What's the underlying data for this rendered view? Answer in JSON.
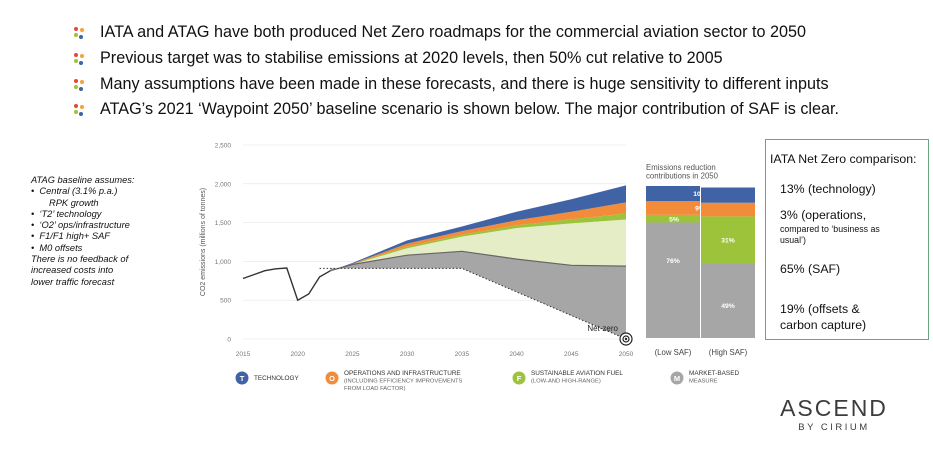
{
  "bullets": [
    "IATA and ATAG have both produced Net Zero roadmaps for the commercial aviation sector to 2050",
    "Previous target was to stabilise emissions at 2020 levels, then 50% cut relative to 2005",
    "Many assumptions have been made in these forecasts, and there is huge sensitivity to different inputs",
    "ATAG’s 2021 ‘Waypoint 2050’ baseline scenario is shown below. The major contribution of SAF is clear."
  ],
  "assumptions": {
    "heading": "ATAG baseline assumes:",
    "items": [
      "Central (3.1% p.a.)",
      "RPK growth",
      "‘T2’ technology",
      "‘O2’ ops/infrastructure",
      "F1/F1 high+ SAF",
      "M0 offsets"
    ],
    "footer": [
      "There is no feedback of",
      "increased costs into",
      "lower traffic forecast"
    ]
  },
  "iata_box": {
    "title": "IATA Net Zero comparison:",
    "technology": "13% (technology)",
    "operations": "3% (operations,",
    "operations_note_1": "compared to ‘business as",
    "operations_note_2": "usual’)",
    "saf": "65% (SAF)",
    "offsets_1": "19% (offsets &",
    "offsets_2": "carbon capture)"
  },
  "logo": {
    "main": "ASCEND",
    "sub": "BY CIRIUM"
  },
  "colors": {
    "technology": "#3f63a4",
    "operations": "#f28c3a",
    "saf": "#9cc33a",
    "saf_light": "#e4edc6",
    "market": "#a6a6a6",
    "historical": "#333333"
  },
  "chart_data": [
    {
      "type": "area",
      "ylabel": "CO2 emissions (millions of tonnes)",
      "ylim": [
        0,
        2500
      ],
      "yticks": [
        "0",
        "500",
        "1,000",
        "1,500",
        "2,000",
        "2,500"
      ],
      "xticks": [
        "2015",
        "2020",
        "2025",
        "2030",
        "2035",
        "2040",
        "2045",
        "2050"
      ],
      "net_zero_label": "Net-zero",
      "historical": {
        "x": [
          2015,
          2016,
          2017,
          2018,
          2019,
          2020,
          2021,
          2022,
          2023
        ],
        "y": [
          780,
          830,
          880,
          905,
          915,
          500,
          580,
          800,
          880
        ]
      },
      "projection_x": [
        2023,
        2025,
        2030,
        2035,
        2040,
        2045,
        2050
      ],
      "baseline_after_market": [
        880,
        960,
        1080,
        1130,
        1030,
        950,
        940
      ],
      "saf_upper_top": [
        880,
        960,
        1170,
        1320,
        1430,
        1490,
        1540
      ],
      "ops_top": [
        880,
        970,
        1230,
        1390,
        1530,
        1640,
        1760
      ],
      "technology_top": [
        880,
        980,
        1270,
        1450,
        1640,
        1800,
        1980
      ],
      "net_zero_path": {
        "x": [
          2022,
          2035,
          2050
        ],
        "y": [
          910,
          910,
          0
        ]
      },
      "legend": [
        {
          "letter": "T",
          "label": [
            "TECHNOLOGY"
          ]
        },
        {
          "letter": "O",
          "label": [
            "OPERATIONS AND INFRASTRUCTURE",
            "(INCLUDING EFFICIENCY IMPROVEMENTS",
            "FROM LOAD FACTOR)"
          ]
        },
        {
          "letter": "F",
          "label": [
            "SUSTAINABLE AVIATION FUEL",
            "(LOW-AND HIGH-RANGE)"
          ]
        },
        {
          "letter": "M",
          "label": [
            "MARKET-BASED",
            "MEASURE"
          ]
        }
      ]
    },
    {
      "type": "bar",
      "title": [
        "Emissions reduction",
        "contributions in 2050"
      ],
      "categories": [
        "(Low SAF)",
        "(High SAF)"
      ],
      "series": [
        {
          "name": "Market-based measure",
          "values": [
            76,
            49
          ]
        },
        {
          "name": "Sustainable aviation fuel",
          "values": [
            5,
            31
          ]
        },
        {
          "name": "Operations and infrastructure",
          "values": [
            9,
            9
          ]
        },
        {
          "name": "Technology",
          "values": [
            10,
            10
          ]
        }
      ],
      "labels": {
        "technology": "10%",
        "operations": "9%",
        "saf_low": "5%",
        "saf_high": "31%",
        "market_low": "76%",
        "market_high": "49%"
      }
    }
  ]
}
